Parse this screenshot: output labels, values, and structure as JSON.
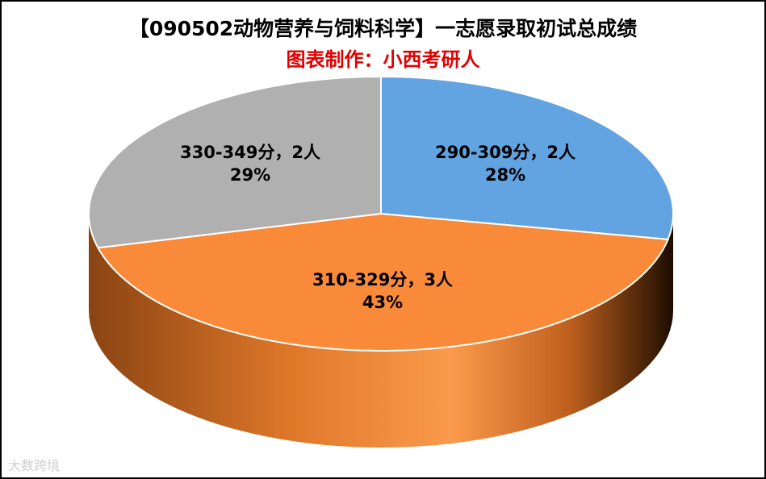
{
  "chart_data": {
    "type": "pie",
    "title": "【090502动物营养与饲料科学】一志愿录取初试总成绩",
    "subtitle": "图表制作：小西考研人",
    "slices": [
      {
        "label": "290-309分，2人",
        "percent": "28%",
        "value": 28,
        "color": "#62A3E2"
      },
      {
        "label": "310-329分，3人",
        "percent": "43%",
        "value": 43,
        "color": "#F88A3A"
      },
      {
        "label": "330-349分，2人",
        "percent": "29%",
        "value": 29,
        "color": "#B0B0B0"
      }
    ],
    "colors": {
      "title": "#000000",
      "subtitle": "#E00000",
      "side_dark": "#3A1C05",
      "side_light": "#E07A30"
    }
  },
  "watermark": "大数跨境"
}
